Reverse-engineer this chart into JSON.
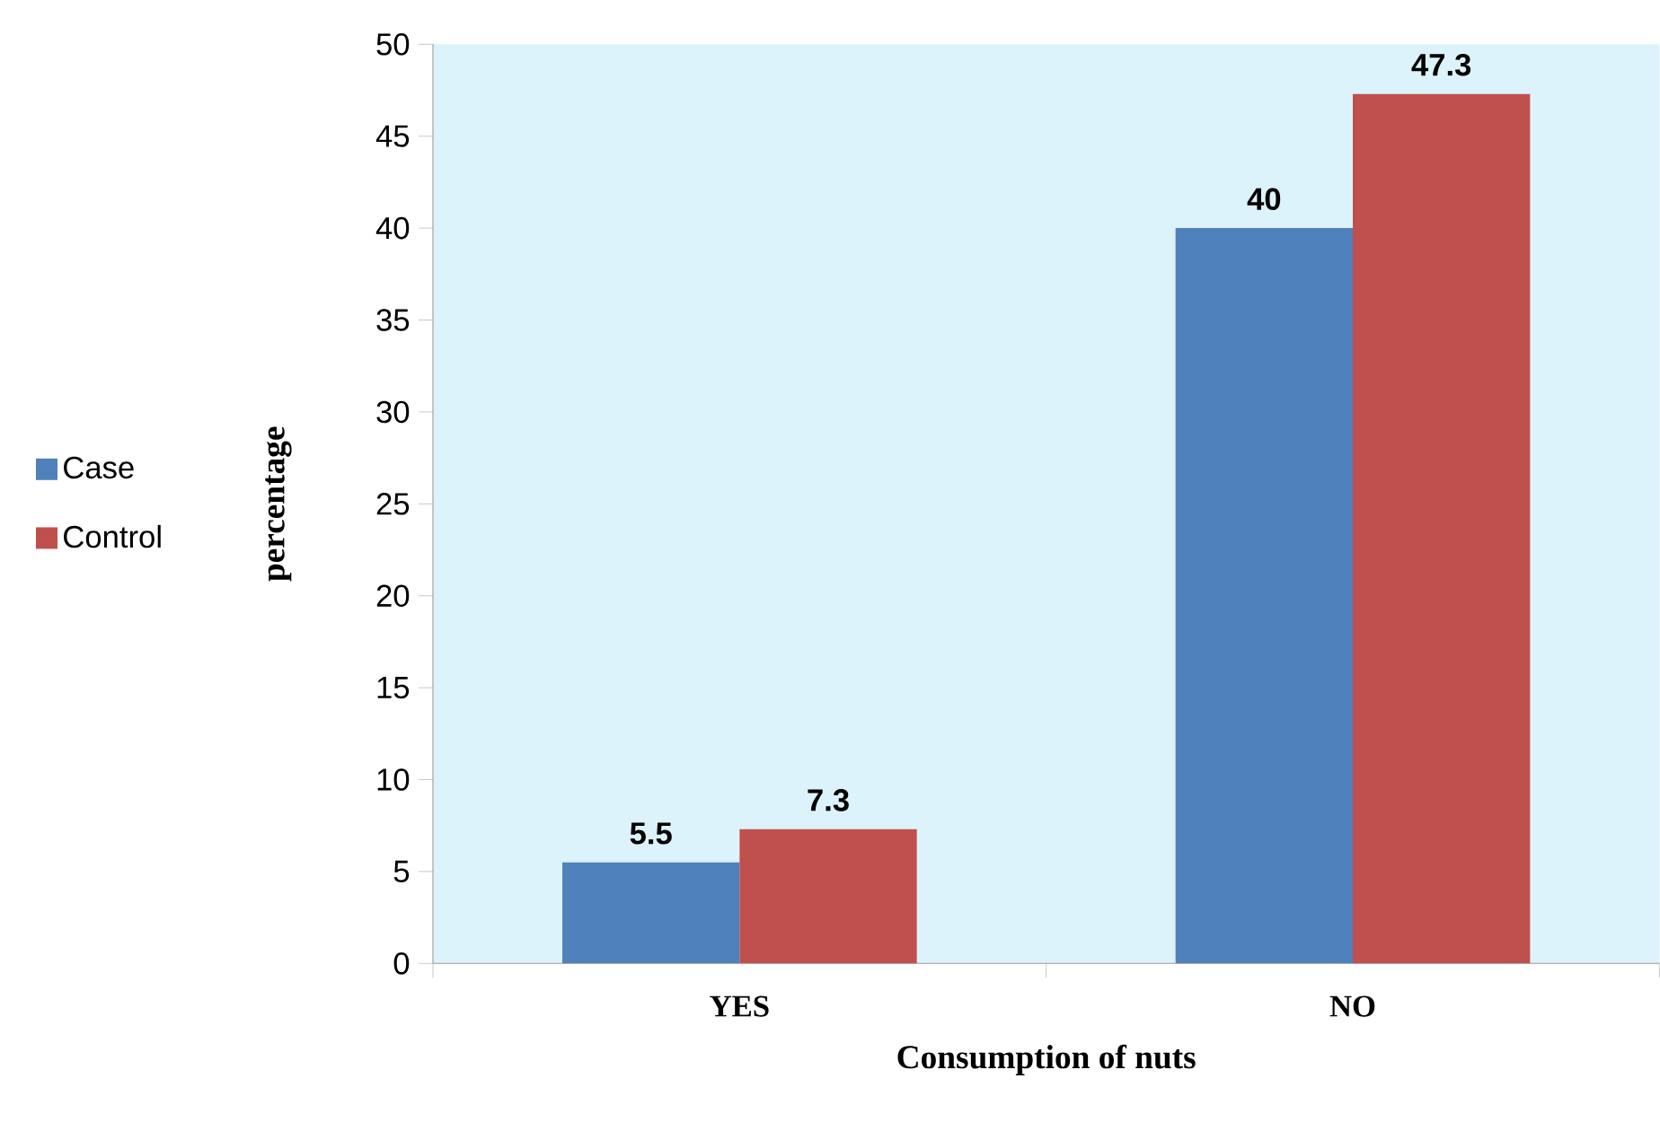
{
  "chart_data": {
    "type": "bar",
    "xlabel": "Consumption of nuts",
    "ylabel": "percentage",
    "categories": [
      "YES",
      "NO"
    ],
    "series": [
      {
        "name": "Case",
        "color": "#4f81bd",
        "values": [
          5.5,
          40
        ],
        "value_labels": [
          "5.5",
          "40"
        ]
      },
      {
        "name": "Control",
        "color": "#c0504d",
        "values": [
          7.3,
          47.3
        ],
        "value_labels": [
          "7.3",
          "47.3"
        ]
      }
    ],
    "ylim": [
      0,
      50
    ],
    "yticks": [
      0,
      5,
      10,
      15,
      20,
      25,
      30,
      35,
      40,
      45,
      50
    ],
    "legend": "left"
  }
}
